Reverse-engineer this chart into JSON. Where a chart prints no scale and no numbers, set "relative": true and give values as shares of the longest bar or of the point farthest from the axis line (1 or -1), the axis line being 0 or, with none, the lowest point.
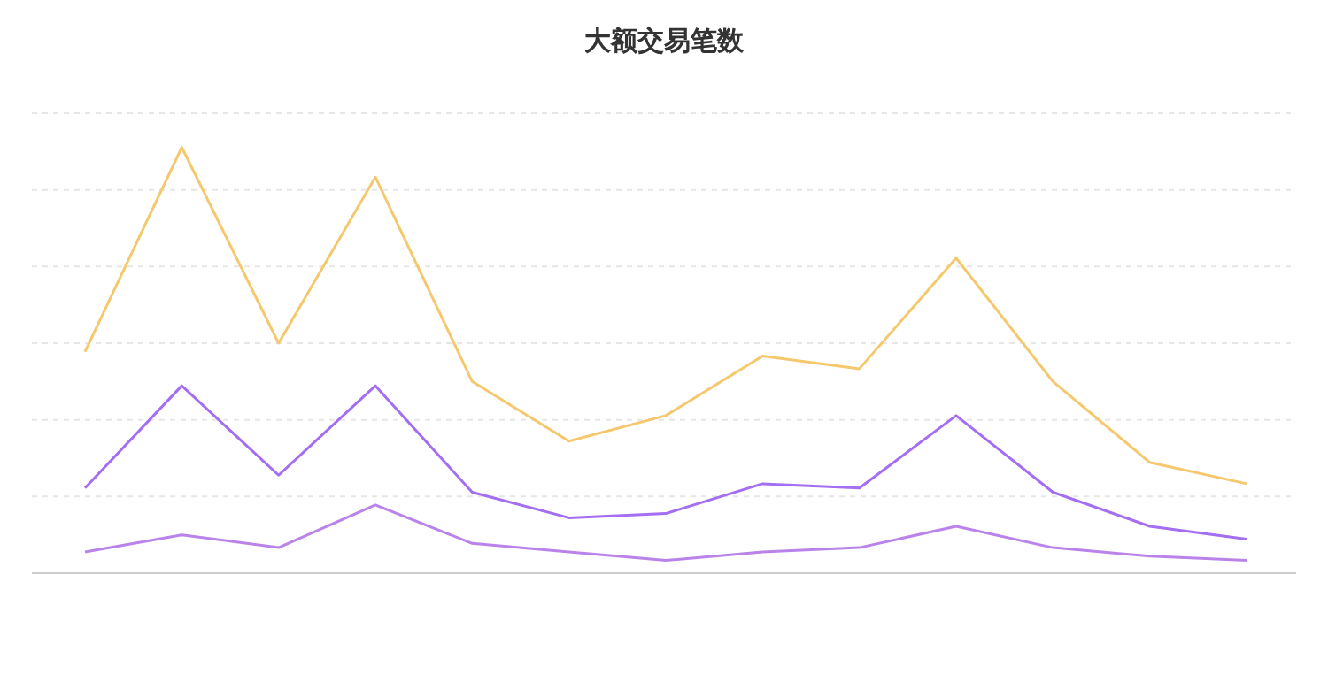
{
  "chart_data": {
    "type": "line",
    "title": "大额交易笔数",
    "relative": true,
    "grid": "y",
    "marker": "none",
    "line_style": "solid",
    "categories": [
      null,
      null,
      null,
      null,
      null,
      null,
      null,
      null,
      null,
      null,
      null,
      null,
      null
    ],
    "series": [
      {
        "color": "#f5c86e",
        "values": [
          0.52,
          1.0,
          0.54,
          0.93,
          0.45,
          0.31,
          0.37,
          0.51,
          0.48,
          0.74,
          0.45,
          0.26,
          0.21
        ]
      },
      {
        "color": "#a46ef2",
        "values": [
          0.2,
          0.44,
          0.23,
          0.44,
          0.19,
          0.13,
          0.14,
          0.21,
          0.2,
          0.37,
          0.19,
          0.11,
          0.08
        ]
      },
      {
        "color": "#b983ea",
        "values": [
          0.05,
          0.09,
          0.06,
          0.16,
          0.07,
          0.05,
          0.03,
          0.05,
          0.06,
          0.11,
          0.06,
          0.04,
          0.03
        ]
      }
    ]
  }
}
